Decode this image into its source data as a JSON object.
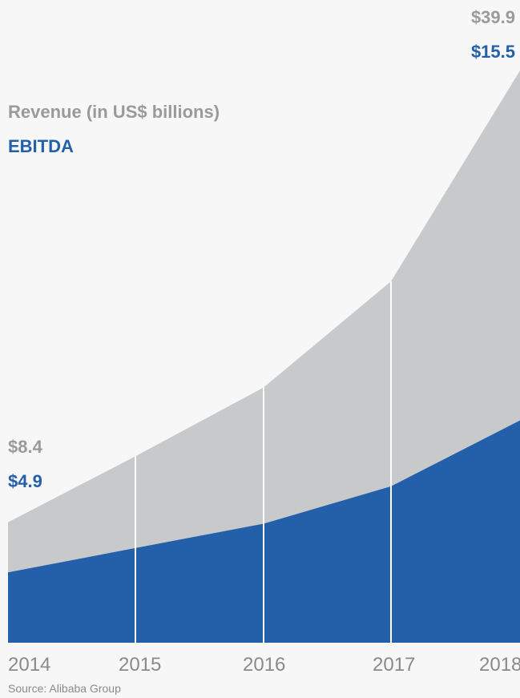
{
  "chart_data": {
    "type": "area",
    "x": [
      "2014",
      "2015",
      "2016",
      "2017",
      "2018"
    ],
    "series": [
      {
        "name": "Revenue (in US$ billions)",
        "color": "#c8c9cb",
        "values": [
          8.4,
          13.0,
          17.8,
          25.2,
          39.9
        ]
      },
      {
        "name": "EBITDA",
        "color": "#2460aa",
        "values": [
          4.9,
          6.6,
          8.3,
          10.9,
          15.5
        ]
      }
    ],
    "ylim": [
      0,
      42
    ],
    "grid": "vertical",
    "start_labels": {
      "revenue": "$8.4",
      "ebitda": "$4.9"
    },
    "end_labels": {
      "revenue": "$39.9",
      "ebitda": "$15.5"
    },
    "source": "Source: Alibaba Group"
  }
}
